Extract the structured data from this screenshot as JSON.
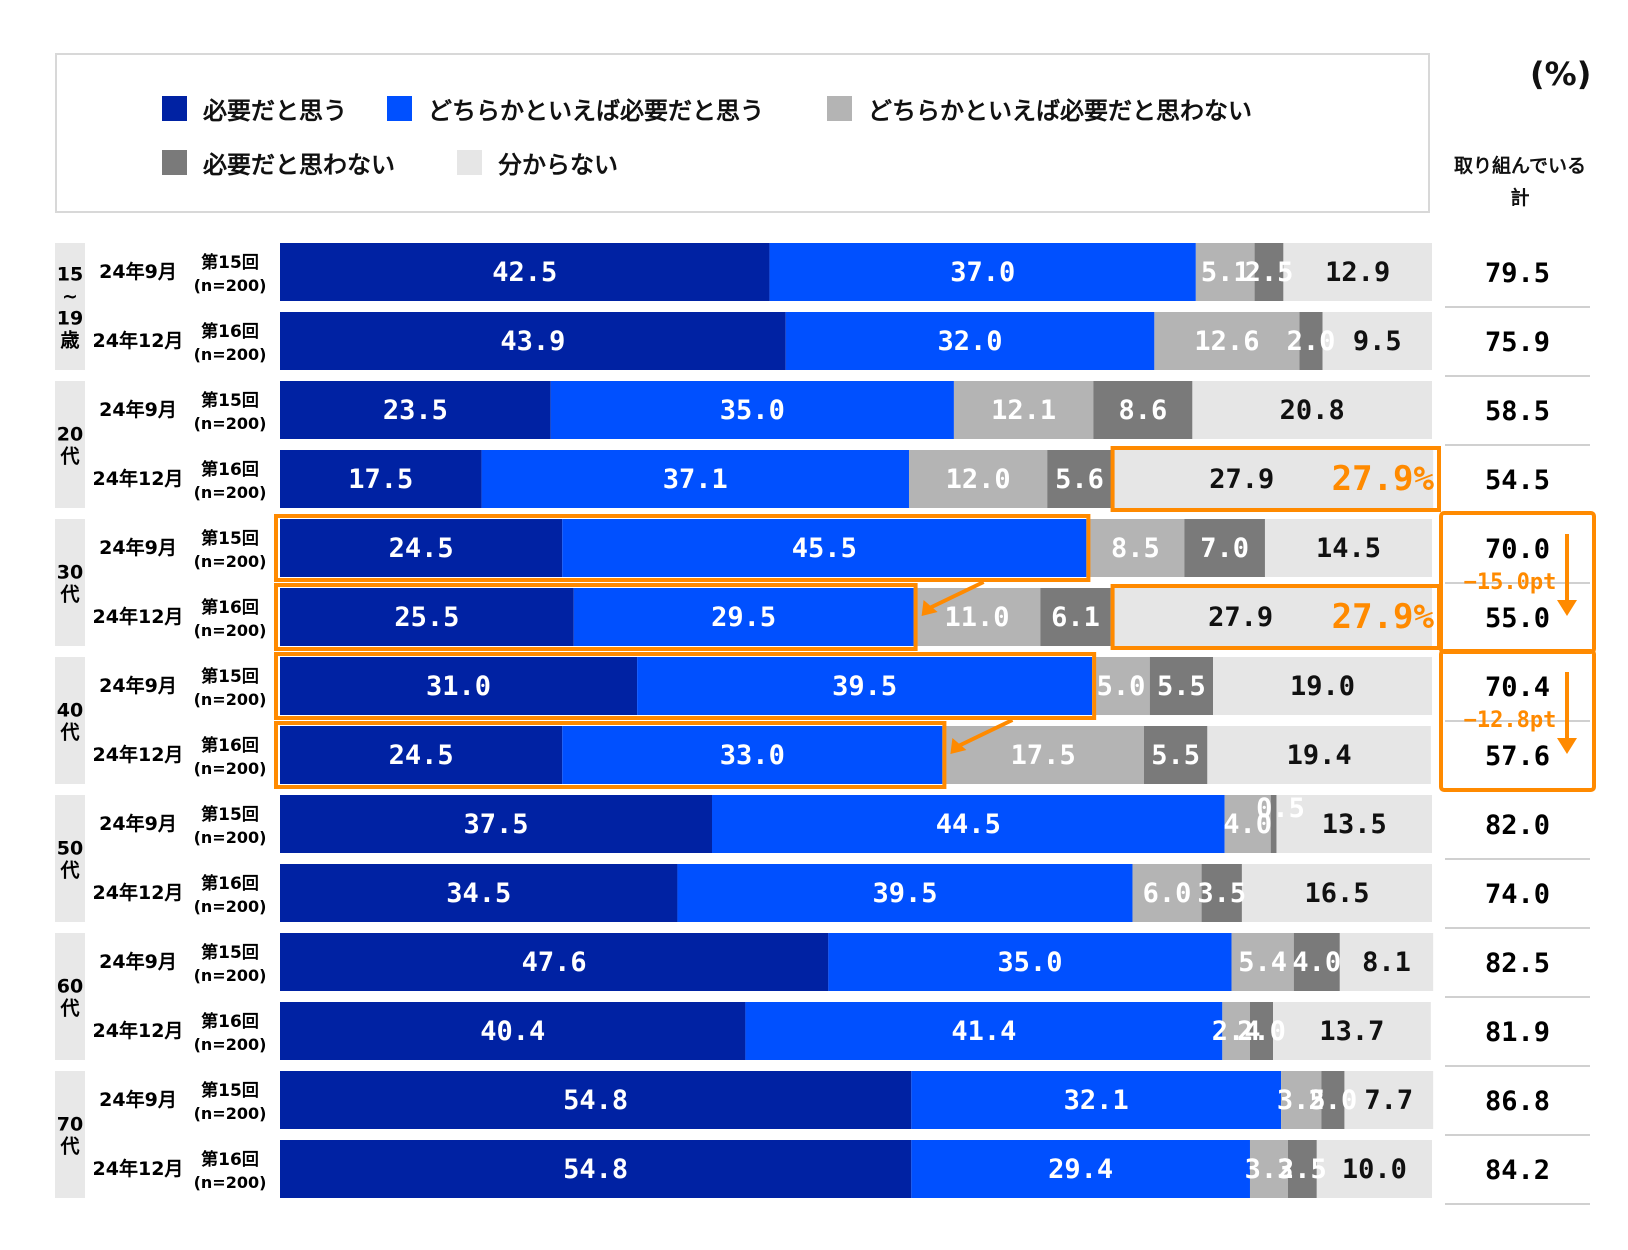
{
  "unit_label": "(%)",
  "total_header": [
    "取り組んでいる",
    "計"
  ],
  "legend": [
    {
      "label": "必要だと思う",
      "color": "#0022a3"
    },
    {
      "label": "どちらかといえば必要だと思う",
      "color": "#0050ff"
    },
    {
      "label": "どちらかといえば必要だと思わない",
      "color": "#b4b4b4"
    },
    {
      "label": "必要だと思わない",
      "color": "#7a7a7a"
    },
    {
      "label": "分からない",
      "color": "#e6e6e6"
    }
  ],
  "chart_data": {
    "type": "bar",
    "orientation": "horizontal",
    "stacked": true,
    "xlim": [
      0,
      100
    ],
    "series": [
      {
        "name": "必要だと思う",
        "color": "#0022a3"
      },
      {
        "name": "どちらかといえば必要だと思う",
        "color": "#0050ff"
      },
      {
        "name": "どちらかといえば必要だと思わない",
        "color": "#b4b4b4"
      },
      {
        "name": "必要だと思わない",
        "color": "#7a7a7a"
      },
      {
        "name": "分からない",
        "color": "#e6e6e6"
      }
    ],
    "groups": [
      {
        "label": "15~19歳",
        "label_lines": [
          "15",
          "~",
          "19",
          "歳"
        ],
        "rows": [
          {
            "date": "24年9月",
            "round": "第15回",
            "n": "(n=200)",
            "values": [
              42.5,
              37.0,
              5.1,
              2.5,
              12.9
            ],
            "labels": [
              "42.5",
              "37.0",
              "5.1",
              "2.5",
              "12.9"
            ],
            "total": "79.5"
          },
          {
            "date": "24年12月",
            "round": "第16回",
            "n": "(n=200)",
            "values": [
              43.9,
              32.0,
              12.6,
              2.0,
              9.5
            ],
            "labels": [
              "43.9",
              "32.0",
              "12.6",
              "2.0",
              "9.5"
            ],
            "total": "75.9"
          }
        ]
      },
      {
        "label": "20代",
        "label_lines": [
          "20",
          "代"
        ],
        "rows": [
          {
            "date": "24年9月",
            "round": "第15回",
            "n": "(n=200)",
            "values": [
              23.5,
              35.0,
              12.1,
              8.6,
              20.8
            ],
            "labels": [
              "23.5",
              "35.0",
              "12.1",
              "8.6",
              "20.8"
            ],
            "total": "58.5"
          },
          {
            "date": "24年12月",
            "round": "第16回",
            "n": "(n=200)",
            "values": [
              17.5,
              37.1,
              12.0,
              5.6,
              27.9
            ],
            "labels": [
              "17.5",
              "37.1",
              "12.0",
              "5.6",
              "27.9"
            ],
            "total": "54.5",
            "callout": "27.9%"
          }
        ]
      },
      {
        "label": "30代",
        "label_lines": [
          "30",
          "代"
        ],
        "rows": [
          {
            "date": "24年9月",
            "round": "第15回",
            "n": "(n=200)",
            "values": [
              24.5,
              45.5,
              8.5,
              7.0,
              14.5
            ],
            "labels": [
              "24.5",
              "45.5",
              "8.5",
              "7.0",
              "14.5"
            ],
            "total": "70.0"
          },
          {
            "date": "24年12月",
            "round": "第16回",
            "n": "(n=200)",
            "values": [
              25.5,
              29.5,
              11.0,
              6.1,
              27.9
            ],
            "labels": [
              "25.5",
              "29.5",
              "11.0",
              "6.1",
              "27.9"
            ],
            "total": "55.0",
            "callout": "27.9%"
          }
        ],
        "change": "−15.0pt"
      },
      {
        "label": "40代",
        "label_lines": [
          "40",
          "代"
        ],
        "rows": [
          {
            "date": "24年9月",
            "round": "第15回",
            "n": "(n=200)",
            "values": [
              31.0,
              39.5,
              5.0,
              5.5,
              19.0
            ],
            "labels": [
              "31.0",
              "39.5",
              "5.0",
              "5.5",
              "19.0"
            ],
            "total": "70.4"
          },
          {
            "date": "24年12月",
            "round": "第16回",
            "n": "(n=200)",
            "values": [
              24.5,
              33.0,
              17.5,
              5.5,
              19.4
            ],
            "labels": [
              "24.5",
              "33.0",
              "17.5",
              "5.5",
              "19.4"
            ],
            "total": "57.6"
          }
        ],
        "change": "−12.8pt"
      },
      {
        "label": "50代",
        "label_lines": [
          "50",
          "代"
        ],
        "rows": [
          {
            "date": "24年9月",
            "round": "第15回",
            "n": "(n=200)",
            "values": [
              37.5,
              44.5,
              4.0,
              0.5,
              13.5
            ],
            "labels": [
              "37.5",
              "44.5",
              "4.0",
              "0.5",
              "13.5"
            ],
            "total": "82.0"
          },
          {
            "date": "24年12月",
            "round": "第16回",
            "n": "(n=200)",
            "values": [
              34.5,
              39.5,
              6.0,
              3.5,
              16.5
            ],
            "labels": [
              "34.5",
              "39.5",
              "6.0",
              "3.5",
              "16.5"
            ],
            "total": "74.0"
          }
        ]
      },
      {
        "label": "60代",
        "label_lines": [
          "60",
          "代"
        ],
        "rows": [
          {
            "date": "24年9月",
            "round": "第15回",
            "n": "(n=200)",
            "values": [
              47.6,
              35.0,
              5.4,
              4.0,
              8.1
            ],
            "labels": [
              "47.6",
              "35.0",
              "5.4",
              "4.0",
              "8.1"
            ],
            "total": "82.5"
          },
          {
            "date": "24年12月",
            "round": "第16回",
            "n": "(n=200)",
            "values": [
              40.4,
              41.4,
              2.4,
              2.0,
              13.7
            ],
            "labels": [
              "40.4",
              "41.4",
              "2.4",
              "2.0",
              "13.7"
            ],
            "total": "81.9"
          }
        ]
      },
      {
        "label": "70代",
        "label_lines": [
          "70",
          "代"
        ],
        "rows": [
          {
            "date": "24年9月",
            "round": "第15回",
            "n": "(n=200)",
            "values": [
              54.8,
              32.1,
              3.5,
              2.0,
              7.7
            ],
            "labels": [
              "54.8",
              "32.1",
              "3.5",
              "2.0",
              "7.7"
            ],
            "total": "86.8"
          },
          {
            "date": "24年12月",
            "round": "第16回",
            "n": "(n=200)",
            "values": [
              54.8,
              29.4,
              3.3,
              2.5,
              10.0
            ],
            "labels": [
              "54.8",
              "29.4",
              "3.3",
              "2.5",
              "10.0"
            ],
            "total": "84.2"
          }
        ]
      }
    ],
    "highlight_color": "#ff8a00"
  }
}
